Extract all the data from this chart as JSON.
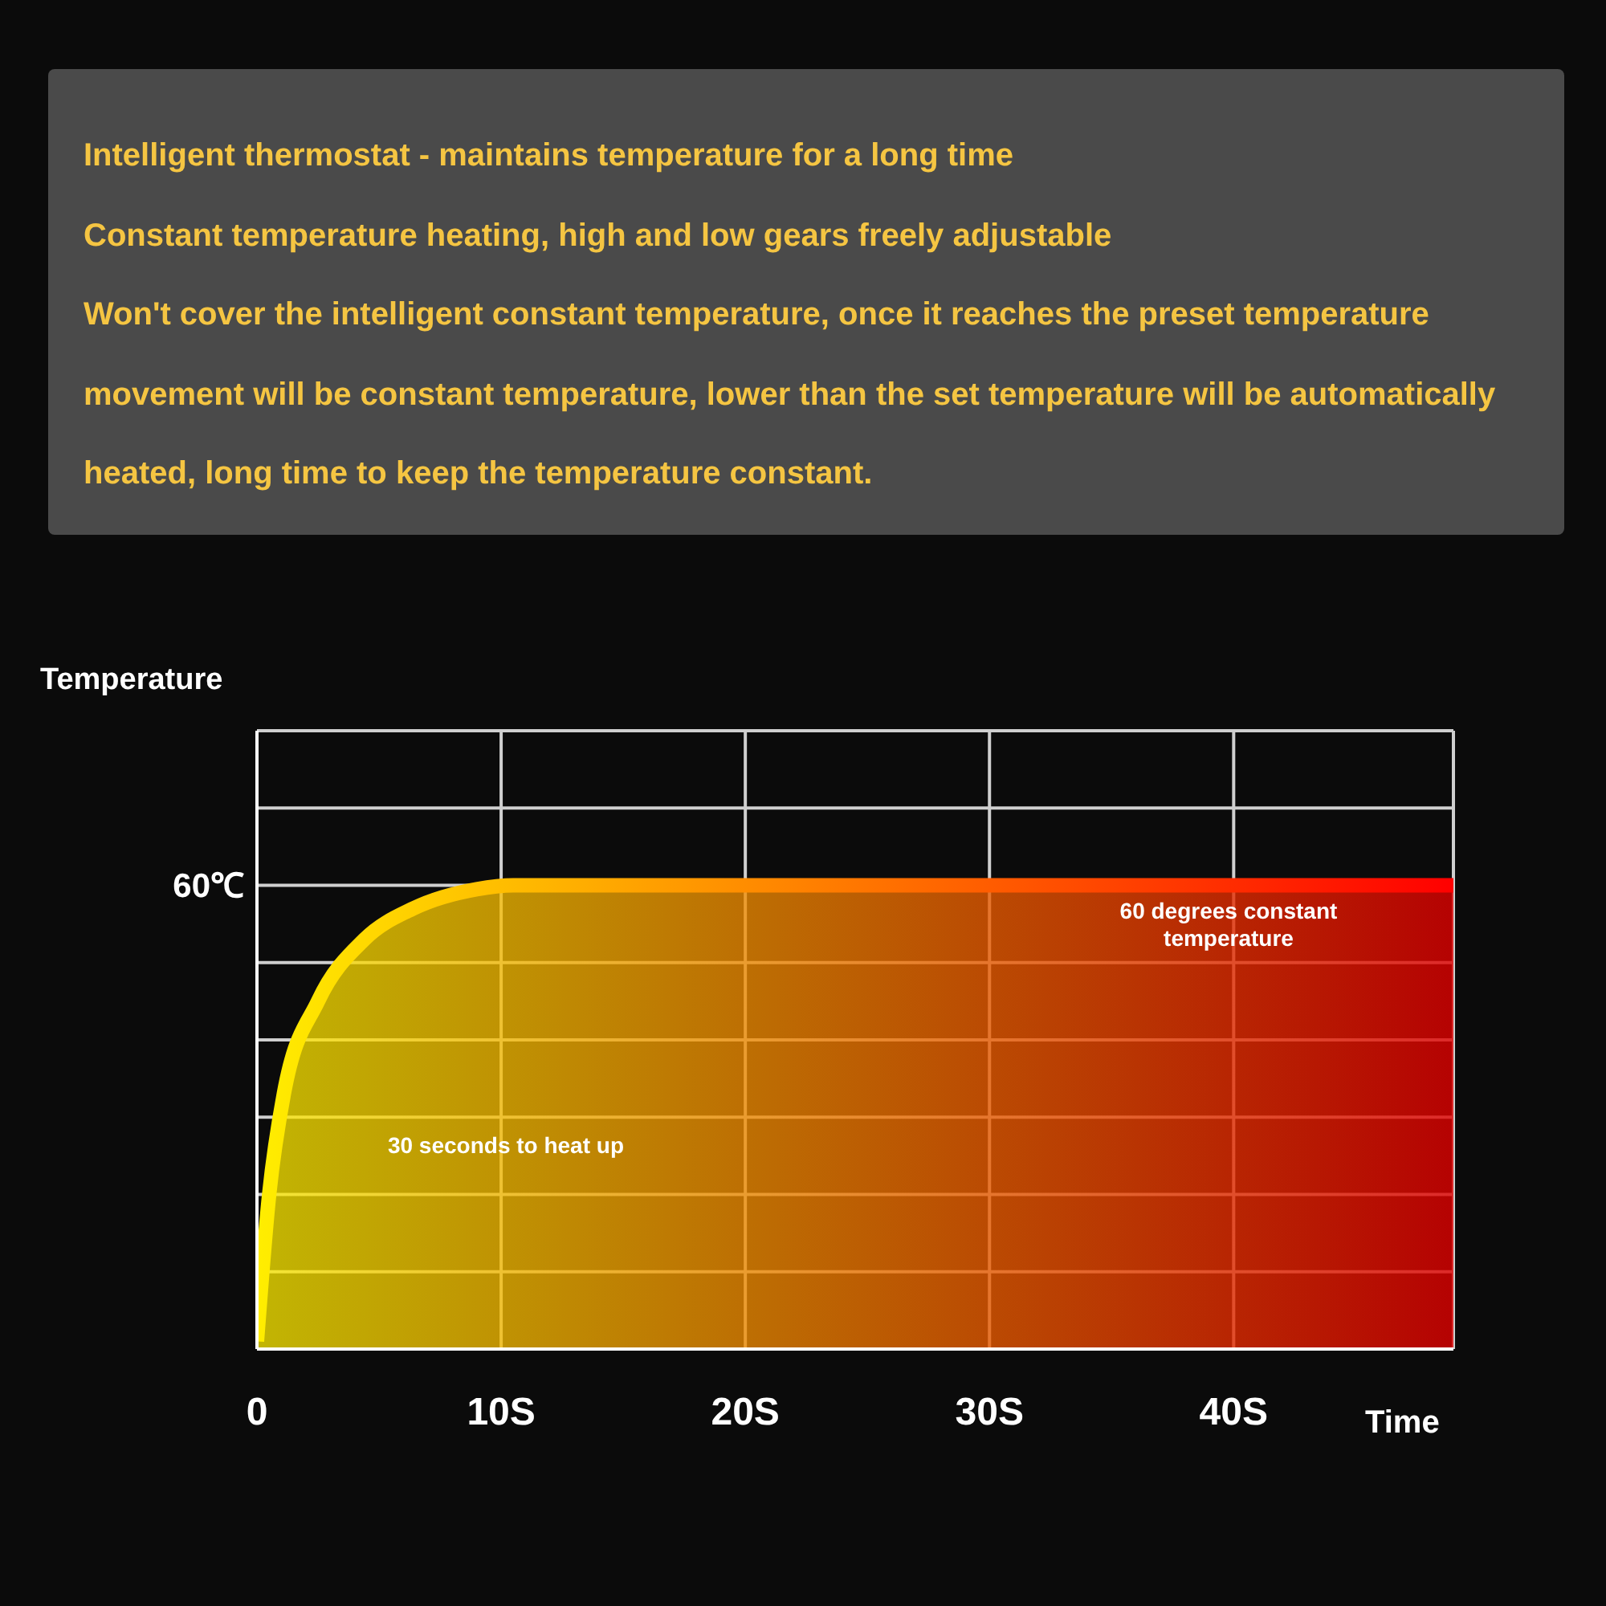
{
  "chart_data": {
    "type": "area",
    "title": "Intelligent thermostat - maintains temperature for a long time",
    "subtitle": "Constant temperature heating, high and low gears freely adjustable",
    "xlabel": "Time",
    "ylabel": "Temperature",
    "x": [
      0,
      0.5,
      1.1,
      2.5,
      4.4,
      6.4,
      9,
      10.5,
      20,
      30,
      40,
      49
    ],
    "series": [
      {
        "color": "#ffee00",
        "values": [
          1,
          20,
          33,
          45,
          53,
          57,
          59.5,
          60,
          60,
          60,
          60,
          60
        ]
      }
    ],
    "xlim": [
      0,
      49
    ],
    "xticks": [
      0,
      {
        "value": 10,
        "label": "10S"
      },
      {
        "value": 20,
        "label": "20S"
      },
      {
        "value": 30,
        "label": "30S"
      },
      {
        "value": 40,
        "label": "40S"
      }
    ],
    "ylim": [
      0,
      80
    ],
    "yticks": [
      {
        "value": 0,
        "label": null
      },
      {
        "value": 10,
        "label": null
      },
      {
        "value": 20,
        "label": null
      },
      {
        "value": 30,
        "label": null
      },
      {
        "value": 40,
        "label": null
      },
      {
        "value": 50,
        "label": null
      },
      {
        "value": 60,
        "label": "60℃"
      },
      {
        "value": 70,
        "label": null
      },
      {
        "value": 80,
        "label": null
      }
    ],
    "grid": true,
    "legend": false,
    "marker": "none",
    "line_style": "solid",
    "annotations": [
      "Won't cover the intelligent constant temperature, once it reaches the preset temperature movement will be constant temperature, lower than the set temperature will be automatically heated, long time to keep the temperature constant.",
      "30 seconds to heat up",
      "60 degrees constant temperature"
    ]
  }
}
